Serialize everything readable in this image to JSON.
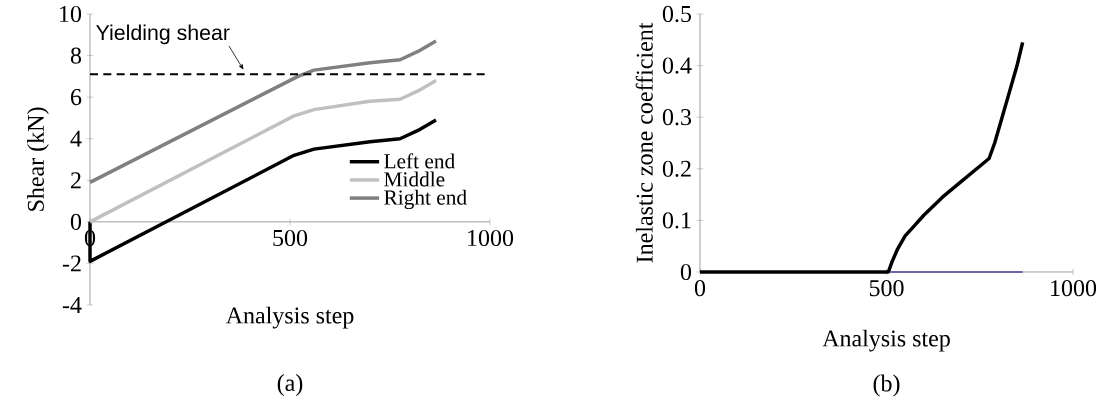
{
  "chart_data": [
    {
      "type": "line",
      "xlabel": "Analysis step",
      "ylabel": "Shear (kN)",
      "xlim": [
        0,
        1000
      ],
      "ylim": [
        -4,
        10
      ],
      "xticks": [
        0,
        500,
        1000
      ],
      "yticks": [
        -4,
        -2,
        0,
        2,
        4,
        6,
        8,
        10
      ],
      "legend": "right",
      "ref_lines": [
        {
          "axis": "y",
          "value": 7.1,
          "label": "Yielding shear",
          "line_style": "dashed",
          "color": "#000000"
        }
      ],
      "annotations": [
        "(a)"
      ],
      "series": [
        {
          "name": "Left end",
          "color": "#000000",
          "x": [
            0,
            0,
            510,
            560,
            700,
            775,
            820,
            865
          ],
          "values": [
            0,
            -1.9,
            3.2,
            3.5,
            3.85,
            4.0,
            4.4,
            4.9
          ]
        },
        {
          "name": "Middle",
          "color": "#c0c0c0",
          "x": [
            0,
            510,
            560,
            700,
            775,
            820,
            865
          ],
          "values": [
            0,
            5.1,
            5.4,
            5.8,
            5.9,
            6.3,
            6.8
          ]
        },
        {
          "name": "Right end",
          "color": "#808080",
          "x": [
            0,
            520,
            560,
            700,
            775,
            820,
            865
          ],
          "values": [
            1.9,
            7.0,
            7.3,
            7.65,
            7.8,
            8.2,
            8.7
          ]
        }
      ]
    },
    {
      "type": "line",
      "xlabel": "Analysis step",
      "ylabel": "Inelastic zone coefficient",
      "xlim": [
        0,
        1000
      ],
      "ylim": [
        0,
        0.5
      ],
      "xticks": [
        0,
        500,
        1000
      ],
      "yticks": [
        0,
        0.1,
        0.2,
        0.3,
        0.4,
        0.5
      ],
      "annotations": [
        "(b)"
      ],
      "series": [
        {
          "color": "#000000",
          "x": [
            0,
            505,
            515,
            530,
            550,
            575,
            600,
            650,
            700,
            750,
            775,
            790,
            810,
            830,
            850,
            865
          ],
          "values": [
            0,
            0,
            0.02,
            0.045,
            0.07,
            0.09,
            0.11,
            0.145,
            0.175,
            0.205,
            0.22,
            0.25,
            0.3,
            0.35,
            0.4,
            0.445
          ]
        },
        {
          "color": "#000080",
          "x": [
            510,
            865
          ],
          "values": [
            0,
            0
          ]
        }
      ]
    }
  ]
}
